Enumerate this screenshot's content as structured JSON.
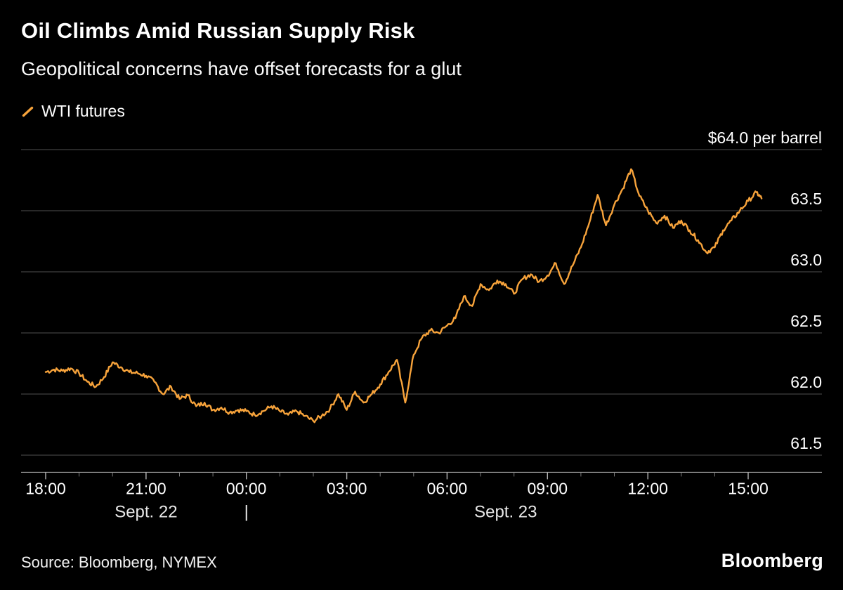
{
  "header": {
    "title": "Oil Climbs Amid Russian Supply Risk",
    "subtitle": "Geopolitical concerns have offset forecasts for a glut"
  },
  "legend": {
    "label": "WTI futures"
  },
  "footer": {
    "source": "Source: Bloomberg, NYMEX",
    "brand": "Bloomberg"
  },
  "colors": {
    "background": "#000000",
    "line": "#F7A33B",
    "grid": "#4f4f4f",
    "axis": "#b3b3b3",
    "axis_minor": "#7a7a7a",
    "text": "#ffffff",
    "text_secondary": "#e8e8e8"
  },
  "chart_data": {
    "type": "line",
    "title": "Oil Climbs Amid Russian Supply Risk",
    "subtitle": "Geopolitical concerns have offset forecasts for a glut",
    "series_name": "WTI futures",
    "unit_label": "$64.0 per barrel",
    "x_unit": "hours elapsed from 18:00 Sept. 22 (NYMEX session)",
    "ylim": [
      61.36,
      64.0
    ],
    "xlim": [
      0,
      21.4
    ],
    "grid": "horizontal",
    "legend_position": "top-left",
    "y_ticks": [
      {
        "value": 64.0,
        "label": "$64.0 per barrel"
      },
      {
        "value": 63.5,
        "label": "63.5"
      },
      {
        "value": 63.0,
        "label": "63.0"
      },
      {
        "value": 62.5,
        "label": "62.5"
      },
      {
        "value": 62.0,
        "label": "62.0"
      },
      {
        "value": 61.5,
        "label": "61.5"
      }
    ],
    "x_ticks": [
      {
        "t": 0,
        "label": "18:00"
      },
      {
        "t": 3,
        "label": "21:00"
      },
      {
        "t": 6,
        "label": "00:00"
      },
      {
        "t": 9,
        "label": "03:00"
      },
      {
        "t": 12,
        "label": "06:00"
      },
      {
        "t": 15,
        "label": "09:00"
      },
      {
        "t": 18,
        "label": "12:00"
      },
      {
        "t": 21,
        "label": "15:00"
      }
    ],
    "day_labels": [
      {
        "center_t": 3,
        "label": "Sept. 22"
      },
      {
        "center_t": 6,
        "label": "|"
      },
      {
        "center_t": 13.75,
        "label": "Sept. 23"
      }
    ],
    "x": [
      0,
      0.25,
      0.5,
      0.75,
      1,
      1.25,
      1.5,
      1.75,
      2,
      2.25,
      2.5,
      2.75,
      3,
      3.25,
      3.5,
      3.75,
      4,
      4.25,
      4.5,
      4.75,
      5,
      5.25,
      5.5,
      5.75,
      6,
      6.25,
      6.5,
      6.75,
      7,
      7.25,
      7.5,
      7.75,
      8,
      8.25,
      8.5,
      8.75,
      9,
      9.25,
      9.5,
      9.75,
      10,
      10.25,
      10.5,
      10.75,
      11,
      11.25,
      11.5,
      11.75,
      12,
      12.25,
      12.5,
      12.75,
      13,
      13.25,
      13.5,
      13.75,
      14,
      14.25,
      14.5,
      14.75,
      15,
      15.25,
      15.5,
      15.75,
      16,
      16.25,
      16.5,
      16.75,
      17,
      17.25,
      17.5,
      17.75,
      18,
      18.25,
      18.5,
      18.75,
      19,
      19.25,
      19.5,
      19.75,
      20,
      20.25,
      20.5,
      20.75,
      21,
      21.25,
      21.4
    ],
    "y": [
      62.18,
      62.2,
      62.19,
      62.21,
      62.17,
      62.1,
      62.06,
      62.14,
      62.26,
      62.22,
      62.18,
      62.17,
      62.15,
      62.1,
      62.0,
      62.06,
      61.96,
      61.99,
      61.9,
      61.93,
      61.87,
      61.89,
      61.85,
      61.87,
      61.86,
      61.83,
      61.86,
      61.9,
      61.86,
      61.83,
      61.86,
      61.82,
      61.78,
      61.82,
      61.88,
      62.0,
      61.87,
      62.02,
      61.93,
      62.0,
      62.08,
      62.18,
      62.28,
      61.93,
      62.32,
      62.46,
      62.52,
      62.5,
      62.56,
      62.62,
      62.8,
      62.72,
      62.9,
      62.85,
      62.93,
      62.9,
      62.82,
      62.94,
      62.98,
      62.92,
      62.97,
      63.07,
      62.9,
      63.05,
      63.2,
      63.4,
      63.63,
      63.38,
      63.55,
      63.68,
      63.84,
      63.62,
      63.5,
      63.4,
      63.46,
      63.36,
      63.42,
      63.34,
      63.26,
      63.16,
      63.2,
      63.34,
      63.42,
      63.5,
      63.58,
      63.65,
      63.6
    ]
  }
}
